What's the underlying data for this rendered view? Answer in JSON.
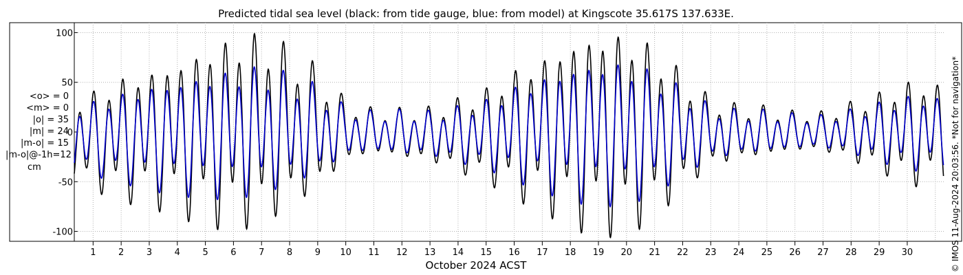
{
  "chart_data": {
    "type": "line",
    "title": "Predicted tidal sea level (black: from tide gauge, blue: from model) at Kingscote 35.617S 137.633E.",
    "xlabel": "October 2024 ACST",
    "ylabel": "",
    "xlim": [
      0.33,
      31.3
    ],
    "ylim": [
      -110,
      110
    ],
    "x_ticks": [
      1,
      2,
      3,
      4,
      5,
      6,
      7,
      8,
      9,
      10,
      11,
      12,
      13,
      14,
      15,
      16,
      17,
      18,
      19,
      20,
      21,
      22,
      23,
      24,
      25,
      26,
      27,
      28,
      29,
      30
    ],
    "y_ticks": [
      -100,
      -50,
      0,
      50,
      100
    ],
    "grid": true,
    "series": [
      {
        "name": "from tide gauge",
        "color": "#000000",
        "amplitudes": [
          32,
          40,
          50,
          55,
          62,
          72,
          78,
          78,
          65,
          50,
          25,
          18,
          20,
          22,
          30,
          38,
          52,
          62,
          75,
          82,
          82,
          70,
          48,
          28,
          22,
          20,
          16,
          16,
          24,
          32,
          42
        ],
        "offsets": [
          -8,
          -8,
          -5,
          -3,
          -2,
          0,
          3,
          5,
          5,
          2,
          0,
          0,
          -2,
          -3,
          -4,
          -3,
          0,
          2,
          3,
          4,
          3,
          2,
          0,
          -1,
          -1,
          0,
          0,
          0,
          0,
          0,
          0
        ]
      },
      {
        "name": "from model",
        "color": "#0000cc",
        "amplitudes": [
          26,
          30,
          36,
          42,
          46,
          50,
          52,
          52,
          45,
          36,
          20,
          16,
          18,
          18,
          23,
          28,
          38,
          46,
          54,
          58,
          58,
          50,
          36,
          22,
          18,
          17,
          14,
          13,
          18,
          24,
          30
        ],
        "offsets": [
          -6,
          -6,
          -4,
          -3,
          -2,
          -1,
          1,
          3,
          3,
          1,
          0,
          0,
          -1,
          -2,
          -3,
          -2,
          0,
          1,
          2,
          3,
          2,
          1,
          0,
          -1,
          -1,
          0,
          0,
          0,
          0,
          0,
          0
        ]
      }
    ],
    "stats": [
      "<o> = 0",
      "<m> = 0",
      "|o| = 35",
      "|m| = 24",
      "|m-o| = 15",
      "|m-o|@-1h=12"
    ],
    "unit": "cm",
    "credit": "© IMOS 11-Aug-2024 20:03:56. *Not for navigation*",
    "colors": {
      "axes": "#000000",
      "grid": "#b0b0b0",
      "background": "#ffffff"
    }
  }
}
